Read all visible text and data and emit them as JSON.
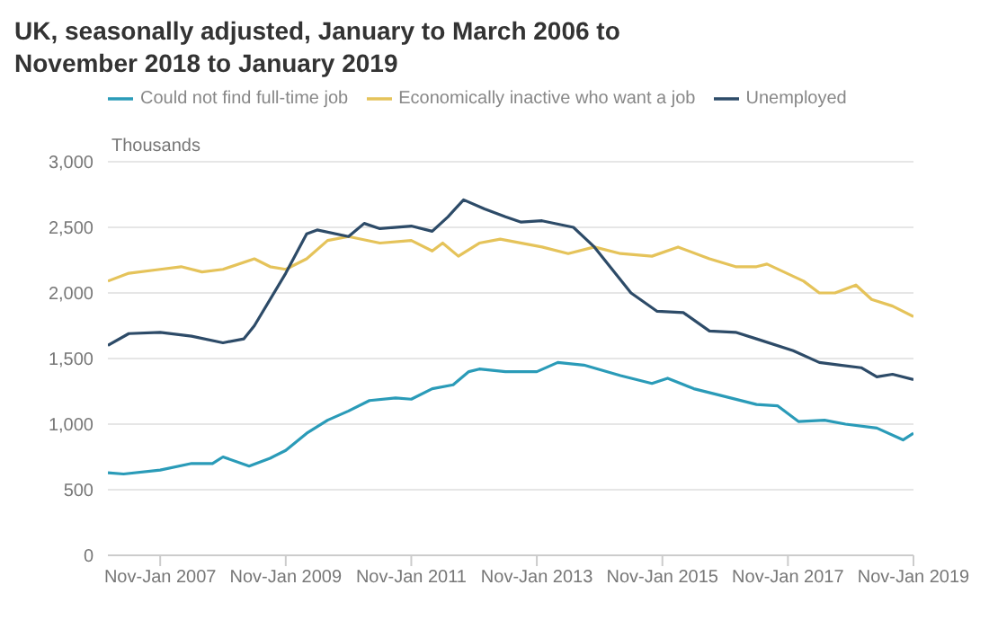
{
  "chart_data": {
    "type": "line",
    "title": "UK, seasonally adjusted, January to March 2006 to November 2018 to January 2019",
    "ylabel": "Thousands",
    "xlim": [
      "2006-03",
      "2019-01"
    ],
    "xticks": [
      {
        "value": "2007-01",
        "label": "Nov-Jan 2007"
      },
      {
        "value": "2009-01",
        "label": "Nov-Jan 2009"
      },
      {
        "value": "2011-01",
        "label": "Nov-Jan 2011"
      },
      {
        "value": "2013-01",
        "label": "Nov-Jan 2013"
      },
      {
        "value": "2015-01",
        "label": "Nov-Jan 2015"
      },
      {
        "value": "2017-01",
        "label": "Nov-Jan 2017"
      },
      {
        "value": "2019-01",
        "label": "Nov-Jan 2019"
      }
    ],
    "ylim": [
      0,
      3000
    ],
    "yticks": [
      {
        "value": 0,
        "label": "0"
      },
      {
        "value": 500,
        "label": "500"
      },
      {
        "value": 1000,
        "label": "1,000"
      },
      {
        "value": 1500,
        "label": "1,500"
      },
      {
        "value": 2000,
        "label": "2,000"
      },
      {
        "value": 2500,
        "label": "2,500"
      },
      {
        "value": 3000,
        "label": "3,000"
      }
    ],
    "grid": "y",
    "legend": "top left",
    "marker": "none",
    "line_style": "solid",
    "series": [
      {
        "name": "Could not find full-time job",
        "color": "#2a9bb8",
        "x": [
          "2006-03",
          "2006-06",
          "2007-01",
          "2007-07",
          "2007-11",
          "2008-01",
          "2008-06",
          "2008-10",
          "2009-01",
          "2009-05",
          "2009-09",
          "2010-01",
          "2010-05",
          "2010-10",
          "2011-01",
          "2011-05",
          "2011-09",
          "2011-12",
          "2012-02",
          "2012-07",
          "2013-01",
          "2013-05",
          "2013-10",
          "2014-05",
          "2014-11",
          "2015-02",
          "2015-07",
          "2015-12",
          "2016-07",
          "2016-11",
          "2017-03",
          "2017-08",
          "2017-12",
          "2018-06",
          "2018-11",
          "2019-01"
        ],
        "values": [
          630,
          620,
          650,
          700,
          700,
          750,
          680,
          740,
          800,
          930,
          1030,
          1100,
          1180,
          1200,
          1190,
          1270,
          1300,
          1400,
          1420,
          1400,
          1400,
          1470,
          1450,
          1370,
          1310,
          1350,
          1270,
          1220,
          1150,
          1140,
          1020,
          1030,
          1000,
          970,
          880,
          930
        ]
      },
      {
        "name": "Economically inactive who want a job",
        "color": "#e5c35a",
        "x": [
          "2006-03",
          "2006-07",
          "2007-01",
          "2007-05",
          "2007-09",
          "2008-01",
          "2008-07",
          "2008-10",
          "2009-01",
          "2009-05",
          "2009-09",
          "2010-01",
          "2010-07",
          "2011-01",
          "2011-05",
          "2011-07",
          "2011-10",
          "2012-02",
          "2012-06",
          "2013-02",
          "2013-07",
          "2013-12",
          "2014-05",
          "2014-11",
          "2015-04",
          "2015-10",
          "2016-03",
          "2016-07",
          "2016-09",
          "2017-04",
          "2017-07",
          "2017-10",
          "2018-02",
          "2018-05",
          "2018-09",
          "2019-01"
        ],
        "values": [
          2090,
          2150,
          2180,
          2200,
          2160,
          2180,
          2260,
          2200,
          2180,
          2260,
          2400,
          2430,
          2380,
          2400,
          2320,
          2380,
          2280,
          2380,
          2410,
          2350,
          2300,
          2350,
          2300,
          2280,
          2350,
          2260,
          2200,
          2200,
          2220,
          2090,
          2000,
          2000,
          2060,
          1950,
          1900,
          1820
        ]
      },
      {
        "name": "Unemployed",
        "color": "#2d4b68",
        "x": [
          "2006-03",
          "2006-07",
          "2007-01",
          "2007-07",
          "2008-01",
          "2008-05",
          "2008-07",
          "2009-01",
          "2009-05",
          "2009-07",
          "2010-01",
          "2010-04",
          "2010-07",
          "2011-01",
          "2011-05",
          "2011-08",
          "2011-11",
          "2012-03",
          "2012-07",
          "2012-10",
          "2013-02",
          "2013-08",
          "2013-12",
          "2014-07",
          "2014-12",
          "2015-05",
          "2015-10",
          "2016-03",
          "2016-07",
          "2017-02",
          "2017-07",
          "2017-11",
          "2018-03",
          "2018-06",
          "2018-09",
          "2019-01"
        ],
        "values": [
          1600,
          1690,
          1700,
          1670,
          1620,
          1650,
          1750,
          2150,
          2450,
          2480,
          2430,
          2530,
          2490,
          2510,
          2470,
          2580,
          2710,
          2640,
          2580,
          2540,
          2550,
          2500,
          2350,
          2000,
          1860,
          1850,
          1710,
          1700,
          1650,
          1560,
          1470,
          1450,
          1430,
          1360,
          1380,
          1340
        ]
      }
    ]
  }
}
